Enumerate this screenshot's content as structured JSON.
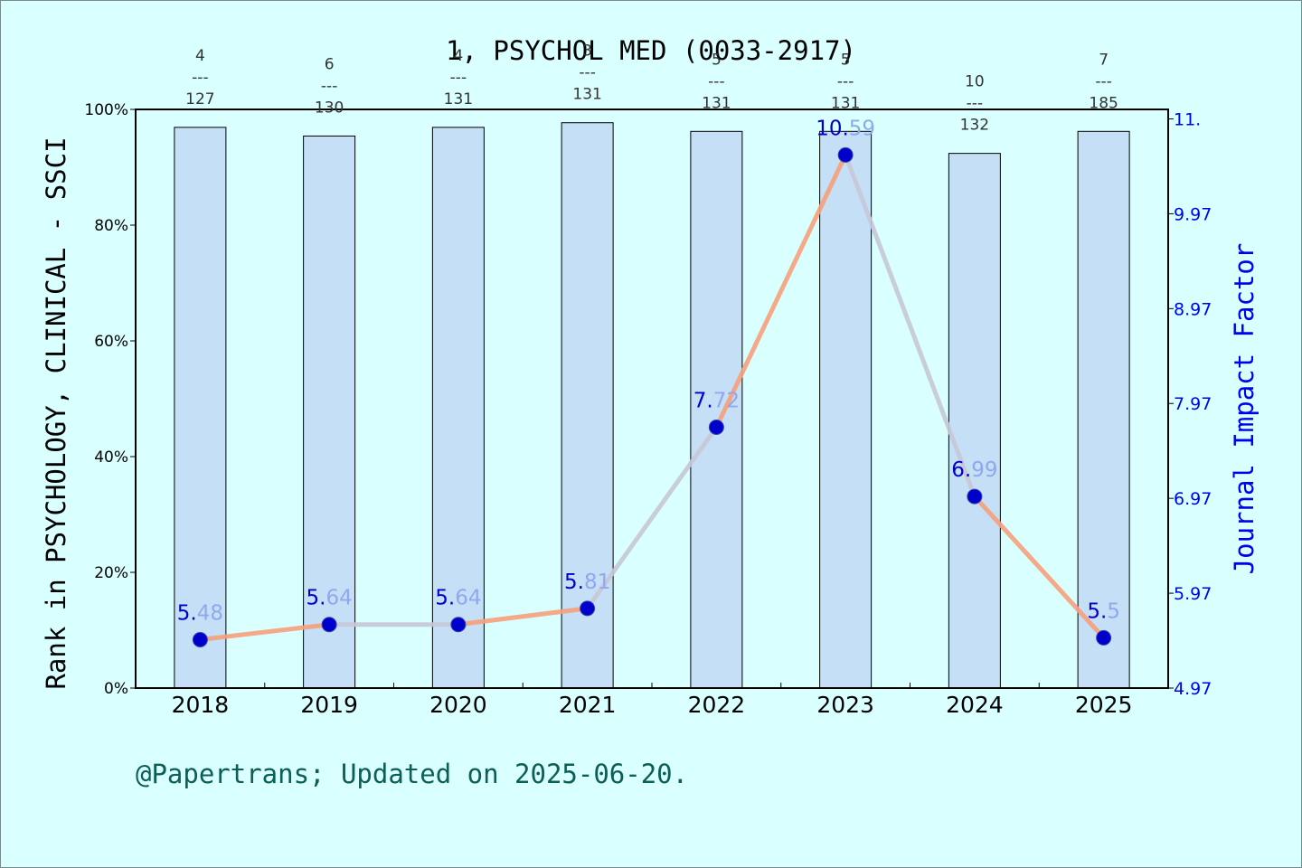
{
  "chart_data": {
    "type": "bar+line",
    "title": "1, PSYCHOL MED (0033-2917)",
    "categories": [
      "2018",
      "2019",
      "2020",
      "2021",
      "2022",
      "2023",
      "2024",
      "2025"
    ],
    "rank_percent": [
      96.9,
      95.4,
      96.9,
      97.7,
      96.2,
      96.2,
      92.4,
      96.2
    ],
    "rank_labels": [
      {
        "num": "4",
        "den": "127"
      },
      {
        "num": "6",
        "den": "130"
      },
      {
        "num": "4",
        "den": "131"
      },
      {
        "num": "3",
        "den": "131"
      },
      {
        "num": "5",
        "den": "131"
      },
      {
        "num": "5",
        "den": "131"
      },
      {
        "num": "10",
        "den": "132"
      },
      {
        "num": "7",
        "den": "185"
      }
    ],
    "impact_factor": [
      5.48,
      5.64,
      5.64,
      5.81,
      7.72,
      10.59,
      6.99,
      5.5
    ],
    "impact_factor_labels": [
      "5.48",
      "5.64",
      "5.64",
      "5.81",
      "7.72",
      "10.59",
      "6.99",
      "5.5"
    ],
    "ylabel_left": "Rank in PSYCHOLOGY, CLINICAL - SSCI",
    "ylabel_right": "Journal Impact Factor",
    "left_ticks": [
      "0%",
      "20%",
      "40%",
      "60%",
      "80%",
      "100%"
    ],
    "left_range": [
      0,
      100
    ],
    "right_ticks": [
      "4.97",
      "5.97",
      "6.97",
      "7.97",
      "8.97",
      "9.97",
      "11."
    ],
    "right_range": [
      4.97,
      11.07
    ],
    "footer": "@Papertrans; Updated on 2025-06-20.",
    "colors": {
      "background": "#d9ffff",
      "bar_fill": "#c5dff7",
      "line": "#f7a07c",
      "line_faded": "#c8c8d8",
      "point": "#0000cc",
      "right_axis": "#0000ee",
      "footer": "#0c5f55"
    }
  }
}
